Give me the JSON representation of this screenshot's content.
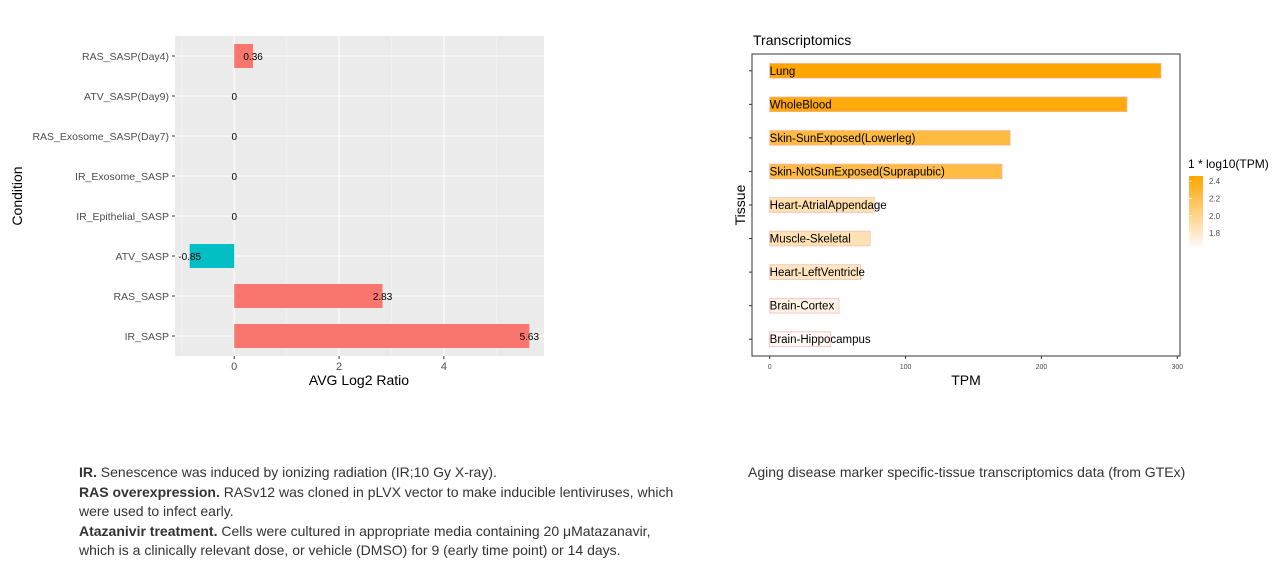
{
  "chart_data": [
    {
      "type": "bar",
      "orientation": "horizontal",
      "title": "",
      "xlabel": "AVG Log2 Ratio",
      "ylabel": "Condition",
      "categories": [
        "RAS_SASP(Day4)",
        "ATV_SASP(Day9)",
        "RAS_Exosome_SASP(Day7)",
        "IR_Exosome_SASP",
        "IR_Epithelial_SASP",
        "ATV_SASP",
        "RAS_SASP",
        "IR_SASP"
      ],
      "values": [
        0.36,
        0,
        0,
        0,
        0,
        -0.85,
        2.83,
        5.63
      ],
      "value_labels": [
        "0.36",
        "0",
        "0",
        "0",
        "0",
        "-0.85",
        "2.83",
        "5.63"
      ],
      "x_ticks": [
        "0",
        "2",
        "4"
      ],
      "xlim": [
        -1.13,
        5.91
      ],
      "grid": true,
      "colors": {
        "positive": "#F8766D",
        "negative": "#00BFC4",
        "panel": "#EBEBEB",
        "grid": "#FFFFFF"
      }
    },
    {
      "type": "bar",
      "orientation": "horizontal",
      "title": "Transcriptomics",
      "xlabel": "TPM",
      "ylabel": "Tissue",
      "categories": [
        "Lung",
        "WholeBlood",
        "Skin-SunExposed(Lowerleg)",
        "Skin-NotSunExposed(Suprapubic)",
        "Heart-AtrialAppendage",
        "Muscle-Skeletal",
        "Heart-LeftVentricle",
        "Brain-Cortex",
        "Brain-Hippocampus"
      ],
      "values": [
        288,
        263,
        177,
        171,
        77,
        74,
        67,
        51,
        45
      ],
      "x_ticks": [
        "0",
        "100",
        "200",
        "300"
      ],
      "xlim": [
        -13,
        302
      ],
      "grid": false,
      "legend": {
        "title": "1 * log10(TPM)",
        "position": "right",
        "ticks": [
          "2.4",
          "2.2",
          "2.0",
          "1.8"
        ],
        "tick_values": [
          2.4,
          2.2,
          2.0,
          1.8
        ],
        "range": [
          1.65,
          2.46
        ],
        "color_low": "#FFF8F6",
        "color_high": "#FFA500"
      }
    }
  ],
  "captions": {
    "left": [
      {
        "bold": "IR.",
        "text": " Senescence was induced by ionizing radiation (IR;10 Gy X-ray)."
      },
      {
        "bold": "RAS overexpression.",
        "text": " RASv12 was cloned in pLVX vector to make inducible lentiviruses, which were used to infect early."
      },
      {
        "bold": "Atazanivir treatment.",
        "text": " Cells were cultured in appropriate media containing 20 μMatazanavir, which is a clinically relevant dose, or vehicle (DMSO) for 9 (early time point) or 14 days."
      }
    ],
    "right": "Aging disease marker specific-tissue transcriptomics data (from GTEx)"
  }
}
